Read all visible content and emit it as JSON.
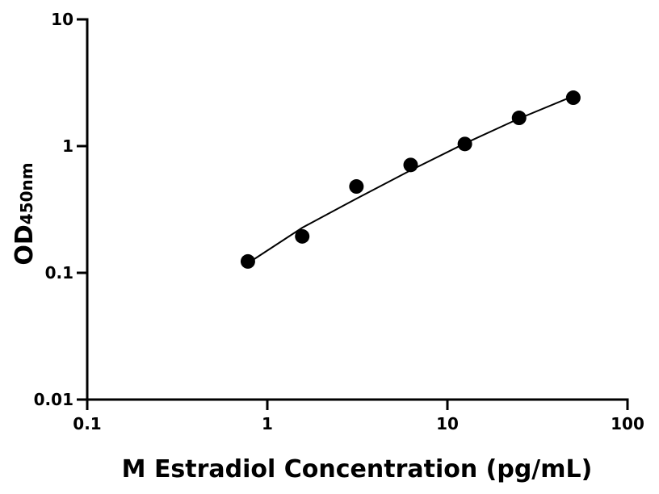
{
  "chart_data": {
    "type": "scatter",
    "x_label": "M Estradiol Concentration (pg/mL)",
    "y_label": "OD",
    "y_label_sub": "450nm",
    "series": [
      {
        "x": [
          0.78,
          1.5625,
          3.125,
          6.25,
          12.5,
          25,
          50
        ],
        "values": [
          0.123,
          0.194,
          0.48,
          0.71,
          1.04,
          1.67,
          2.41
        ],
        "color": "#000000"
      }
    ],
    "fit": {
      "x": [
        0.78,
        1.5625,
        3.125,
        6.25,
        12.5,
        25,
        50
      ],
      "values": [
        0.119,
        0.227,
        0.385,
        0.644,
        1.05,
        1.65,
        2.48
      ],
      "color": "#000000"
    },
    "xlim": [
      0.1,
      100
    ],
    "ylim": [
      0.01,
      10
    ],
    "xticks": [
      0.1,
      1,
      10,
      100
    ],
    "yticks": [
      0.01,
      0.1,
      1,
      10
    ],
    "xscale": "log",
    "yscale": "log",
    "grid": false
  }
}
